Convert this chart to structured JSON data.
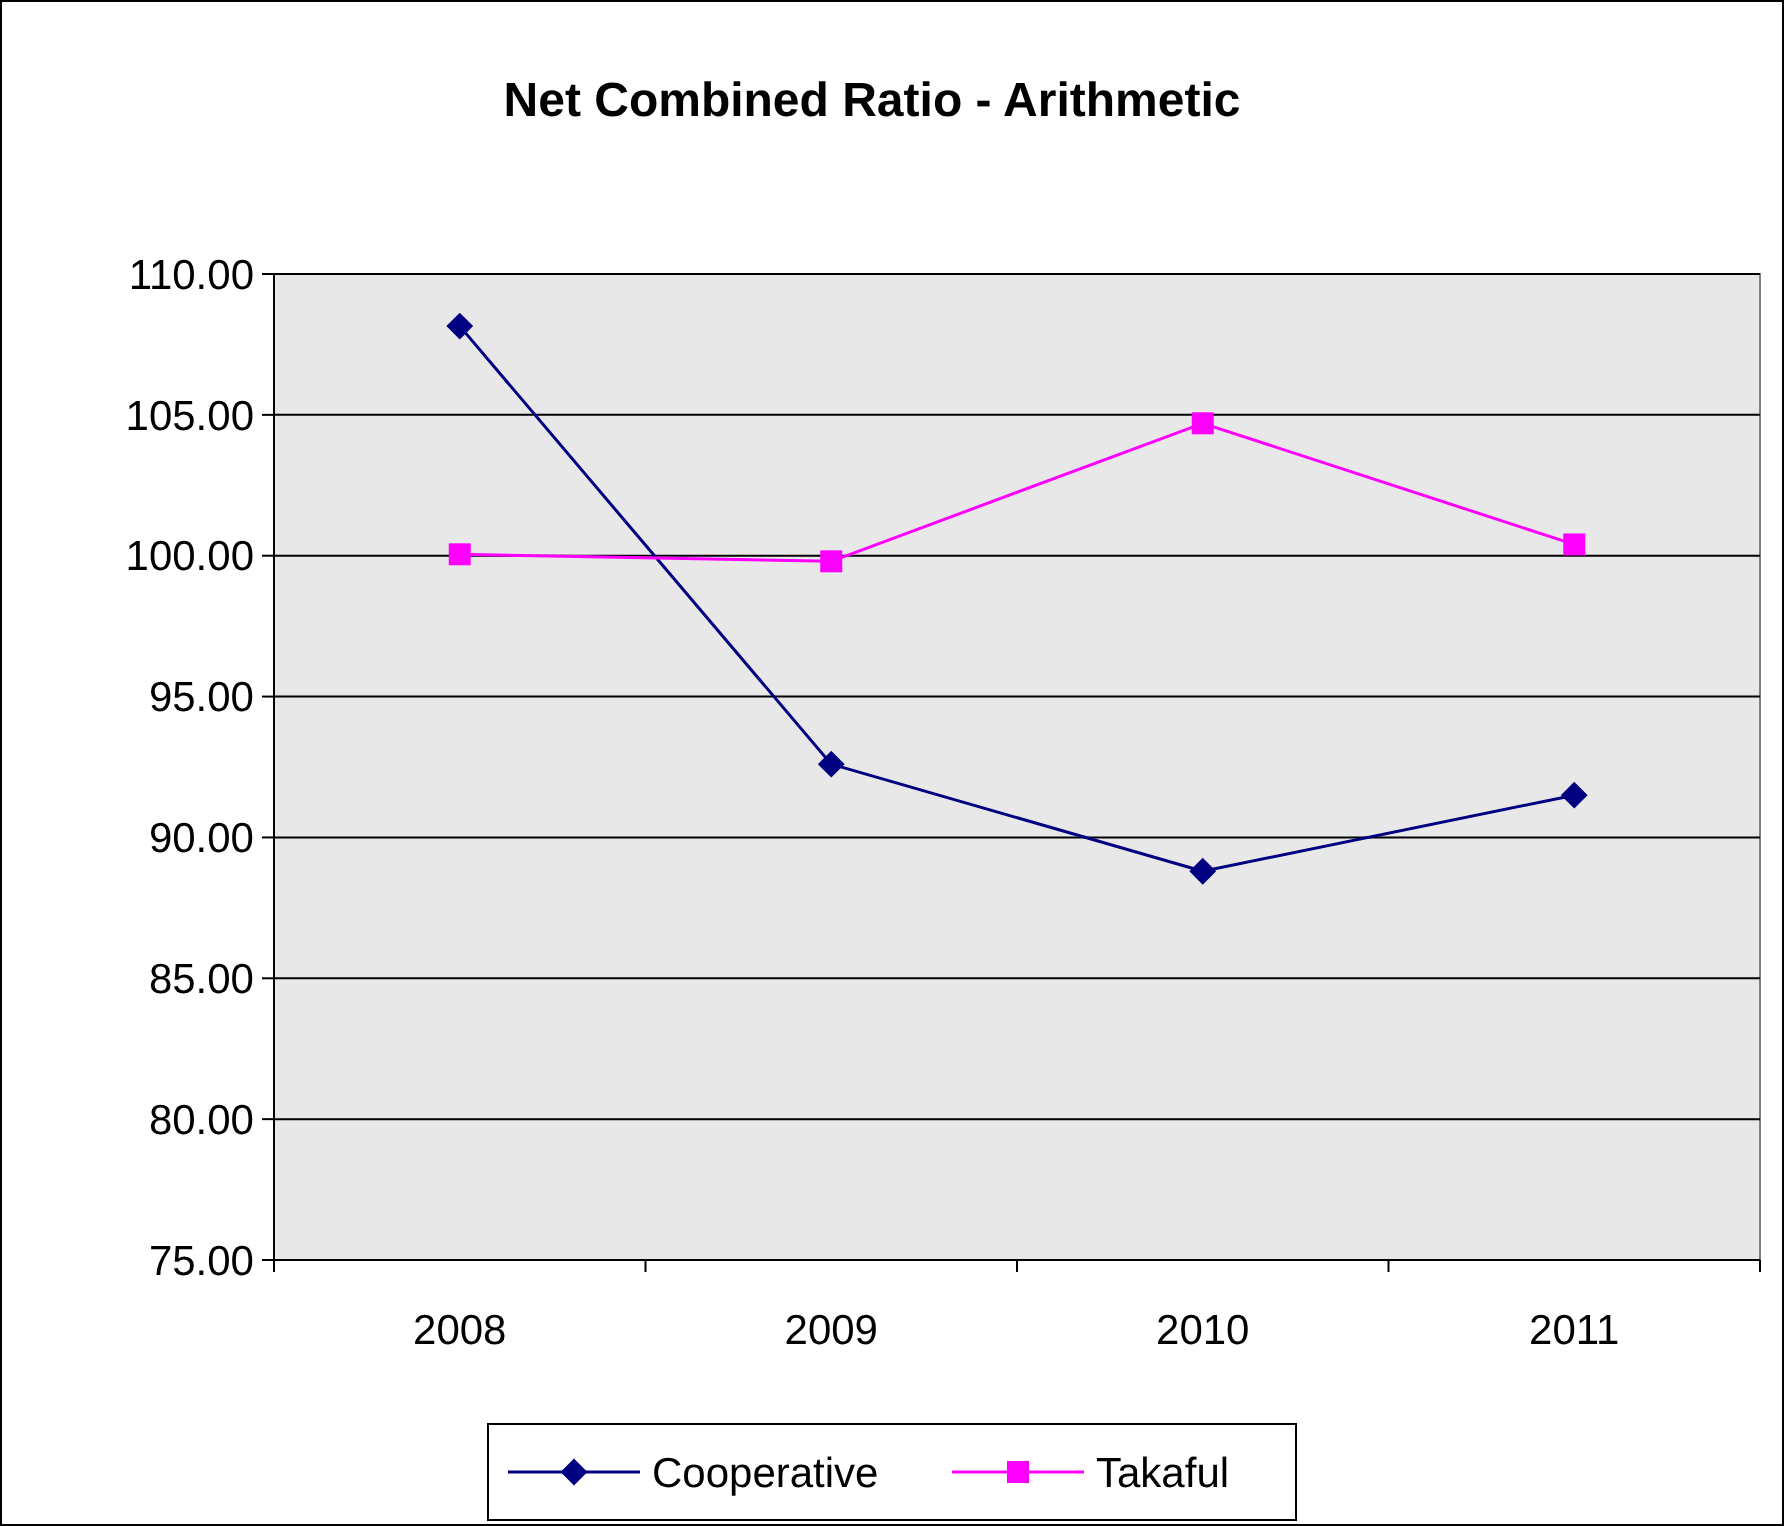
{
  "chart_data": {
    "type": "line",
    "title": "Net Combined Ratio - Arithmetic",
    "categories": [
      "2008",
      "2009",
      "2010",
      "2011"
    ],
    "series": [
      {
        "name": "Cooperative",
        "color": "#000080",
        "values": [
          108.15,
          92.6,
          88.8,
          91.5
        ],
        "marker": "diamond"
      },
      {
        "name": "Takaful",
        "color": "#ff00ff",
        "values": [
          100.05,
          99.8,
          104.7,
          100.4
        ],
        "marker": "square"
      }
    ],
    "ylim": [
      75,
      110
    ],
    "yticks": [
      {
        "value": 75,
        "label": "75.00"
      },
      {
        "value": 80,
        "label": "80.00"
      },
      {
        "value": 85,
        "label": "85.00"
      },
      {
        "value": 90,
        "label": "90.00"
      },
      {
        "value": 95,
        "label": "95.00"
      },
      {
        "value": 100,
        "label": "100.00"
      },
      {
        "value": 105,
        "label": "105.00"
      },
      {
        "value": 110,
        "label": "110.00"
      }
    ],
    "grid": "y",
    "legend": "bottom",
    "line_style": "solid"
  }
}
